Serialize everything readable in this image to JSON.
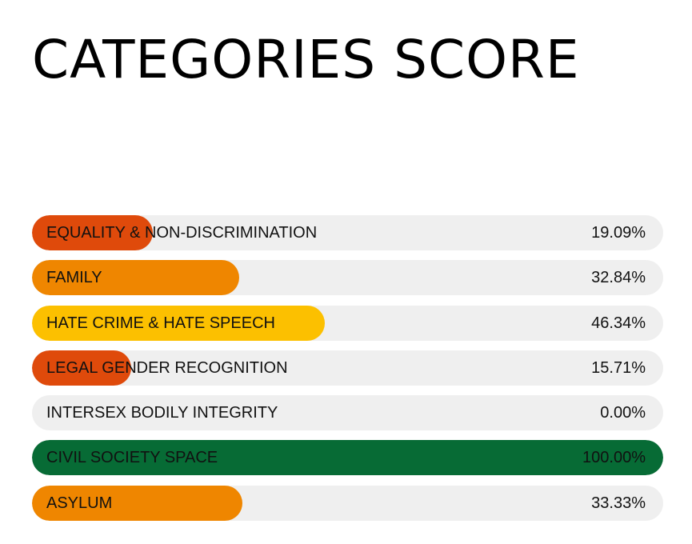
{
  "header": {
    "title": "CATEGORIES SCORE"
  },
  "colors": {
    "track": "#efefef",
    "low": "#df4a0b",
    "mid": "#ef8600",
    "high": "#fcc000",
    "full": "#076b35"
  },
  "chart_data": {
    "type": "bar",
    "orientation": "horizontal",
    "title": "CATEGORIES SCORE",
    "unit": "%",
    "xlim": [
      0,
      100
    ],
    "categories": [
      "EQUALITY & NON-DISCRIMINATION",
      "FAMILY",
      "HATE CRIME & HATE SPEECH",
      "LEGAL GENDER RECOGNITION",
      "INTERSEX BODILY INTEGRITY",
      "CIVIL SOCIETY SPACE",
      "ASYLUM"
    ],
    "values": [
      19.09,
      32.84,
      46.34,
      15.71,
      0.0,
      100.0,
      33.33
    ],
    "value_labels": [
      "19.09%",
      "32.84%",
      "46.34%",
      "15.71%",
      "0.00%",
      "100.00%",
      "33.33%"
    ],
    "bar_colors": [
      "#df4a0b",
      "#ef8600",
      "#fcc000",
      "#df4a0b",
      "#efefef",
      "#076b35",
      "#ef8600"
    ]
  }
}
